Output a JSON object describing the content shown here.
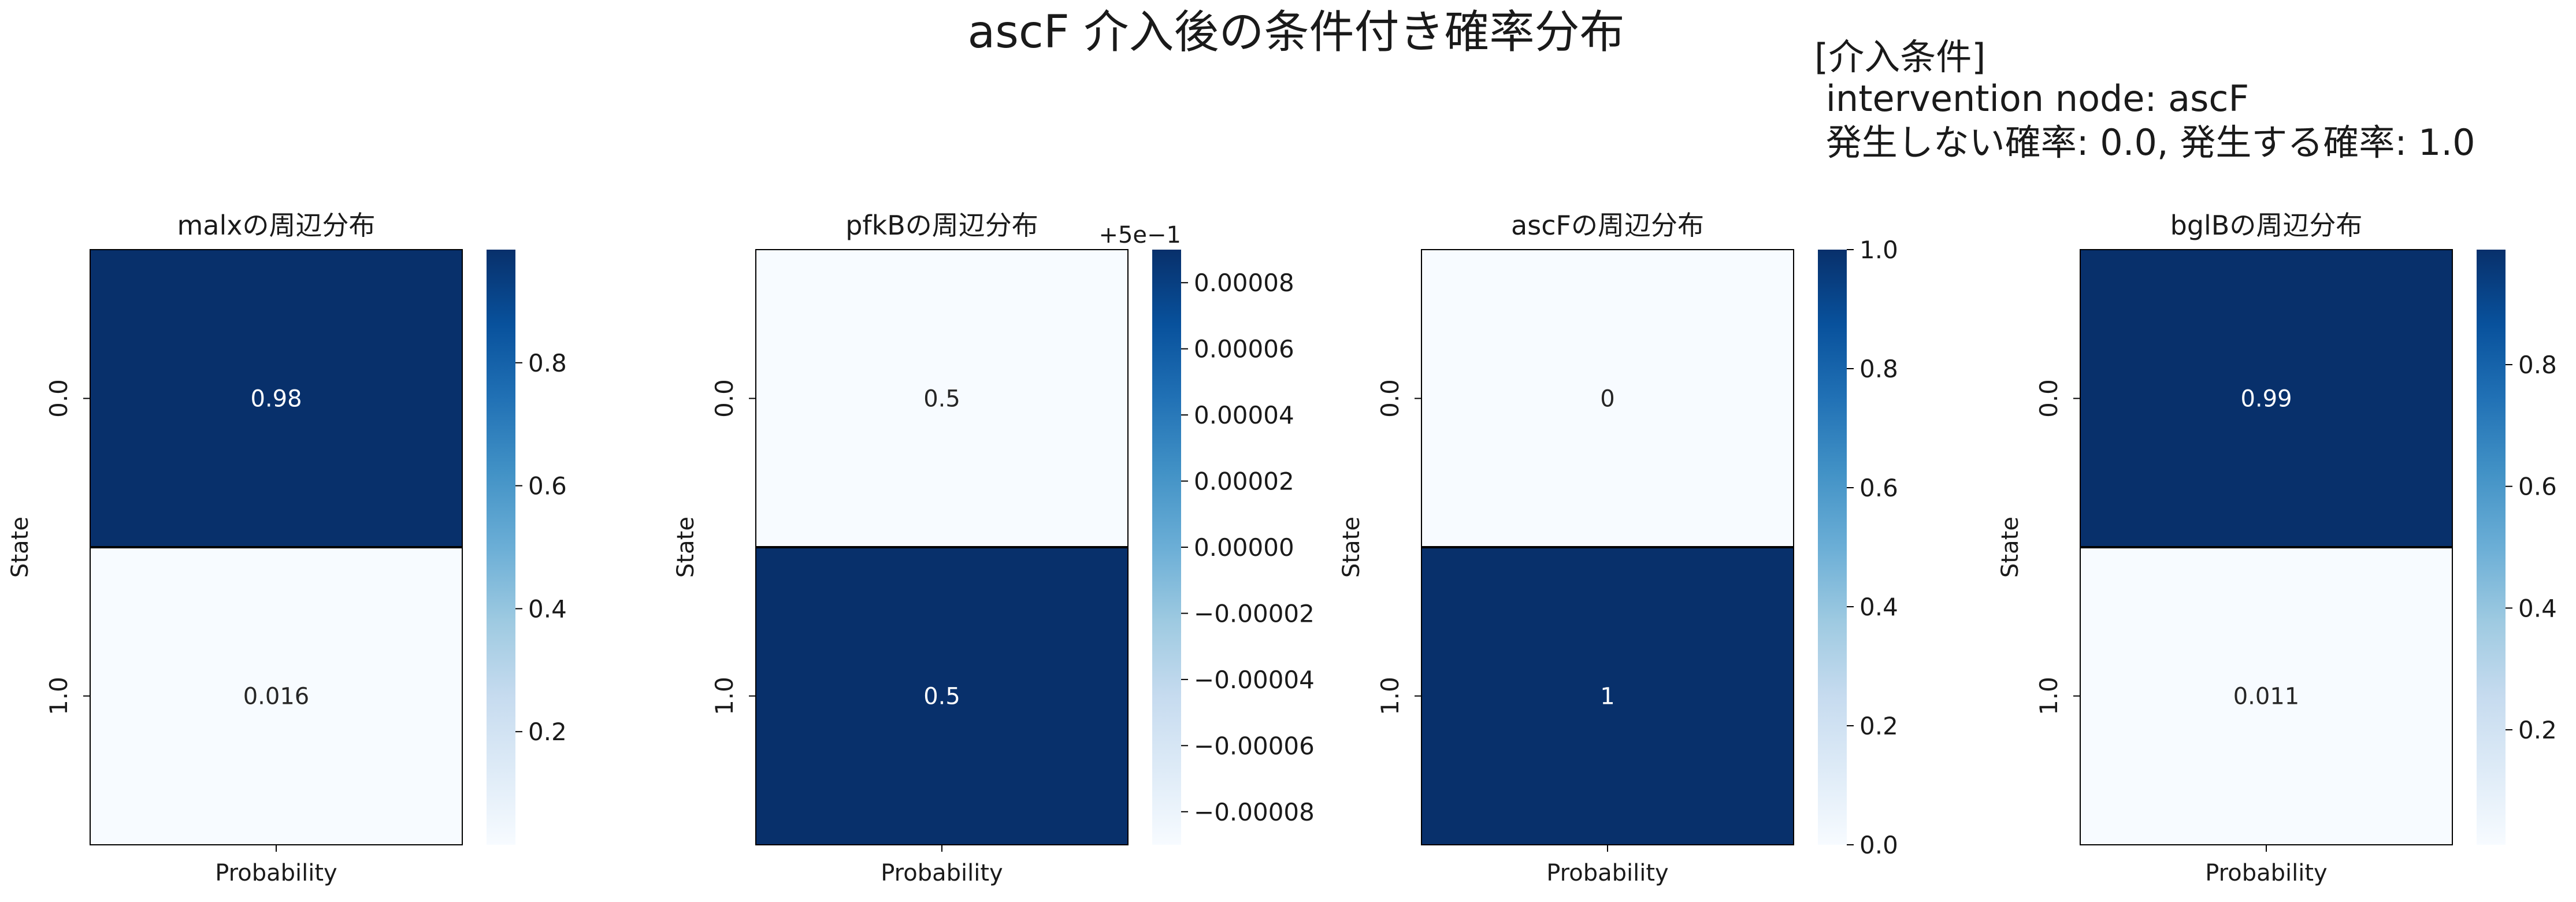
{
  "suptitle": "ascF 介入後の条件付き確率分布",
  "annotation": {
    "line1": "[介入条件]",
    "line2": " intervention node: ascF",
    "line3": " 発生しない確率: 0.0, 発生する確率: 1.0"
  },
  "colormap": {
    "name": "Blues",
    "light": "#f7fbff",
    "dark": "#08306b"
  },
  "chart_data": [
    {
      "type": "heatmap",
      "title": "malxの周辺分布",
      "xlabel": "",
      "ylabel": "State",
      "x_tick_labels": [
        "Probability"
      ],
      "y_tick_labels": [
        "0.0",
        "1.0"
      ],
      "values": [
        0.984,
        0.016
      ],
      "cell_labels": [
        "0.98",
        "0.016"
      ],
      "color_range": [
        0.016,
        0.984
      ],
      "colorbar_ticks": [
        0.2,
        0.4,
        0.6,
        0.8
      ],
      "colorbar_tick_labels": [
        "0.2",
        "0.4",
        "0.6",
        "0.8"
      ],
      "colorbar_offset": ""
    },
    {
      "type": "heatmap",
      "title": "pfkBの周辺分布",
      "xlabel": "",
      "ylabel": "State",
      "x_tick_labels": [
        "Probability"
      ],
      "y_tick_labels": [
        "0.0",
        "1.0"
      ],
      "values": [
        0.49991,
        0.50009
      ],
      "cell_labels": [
        "0.5",
        "0.5"
      ],
      "color_range": [
        0.49991,
        0.50009
      ],
      "colorbar_ticks": [
        -8e-05,
        -6e-05,
        -4e-05,
        -2e-05,
        0.0,
        2e-05,
        4e-05,
        6e-05,
        8e-05
      ],
      "colorbar_tick_labels": [
        "−0.00008",
        "−0.00006",
        "−0.00004",
        "−0.00002",
        "0.00000",
        "0.00002",
        "0.00004",
        "0.00006",
        "0.00008"
      ],
      "colorbar_tick_base": 0.5,
      "colorbar_offset": "+5e−1"
    },
    {
      "type": "heatmap",
      "title": "ascFの周辺分布",
      "xlabel": "",
      "ylabel": "State",
      "x_tick_labels": [
        "Probability"
      ],
      "y_tick_labels": [
        "0.0",
        "1.0"
      ],
      "values": [
        0,
        1
      ],
      "cell_labels": [
        "0",
        "1"
      ],
      "color_range": [
        0,
        1
      ],
      "colorbar_ticks": [
        0.0,
        0.2,
        0.4,
        0.6,
        0.8,
        1.0
      ],
      "colorbar_tick_labels": [
        "0.0",
        "0.2",
        "0.4",
        "0.6",
        "0.8",
        "1.0"
      ],
      "colorbar_offset": ""
    },
    {
      "type": "heatmap",
      "title": "bglBの周辺分布",
      "xlabel": "",
      "ylabel": "State",
      "x_tick_labels": [
        "Probability"
      ],
      "y_tick_labels": [
        "0.0",
        "1.0"
      ],
      "values": [
        0.989,
        0.011
      ],
      "cell_labels": [
        "0.99",
        "0.011"
      ],
      "color_range": [
        0.011,
        0.989
      ],
      "colorbar_ticks": [
        0.2,
        0.4,
        0.6,
        0.8
      ],
      "colorbar_tick_labels": [
        "0.2",
        "0.4",
        "0.6",
        "0.8"
      ],
      "colorbar_offset": ""
    }
  ]
}
